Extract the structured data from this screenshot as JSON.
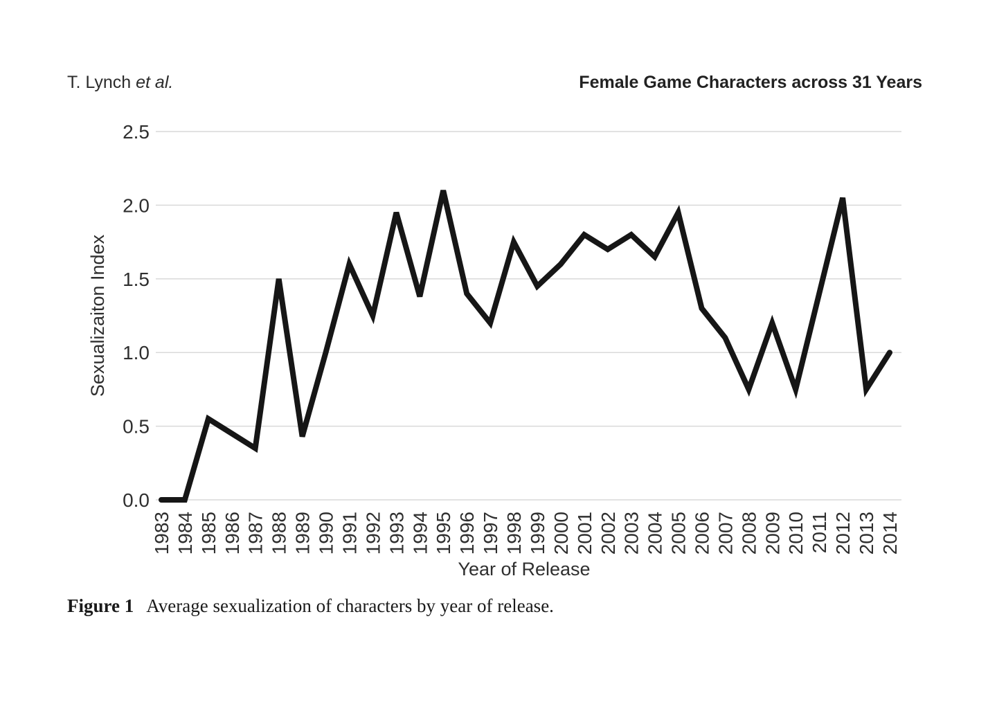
{
  "header": {
    "author_left": "T. Lynch",
    "author_etal": "et al.",
    "title_right": "Female Game Characters across 31 Years"
  },
  "caption": {
    "label": "Figure 1",
    "text": "Average sexualization of characters by year of release."
  },
  "chart_data": {
    "type": "line",
    "title": "",
    "xlabel": "Year of Release",
    "ylabel": "Sexualizaiton Index",
    "x": [
      1983,
      1984,
      1985,
      1986,
      1987,
      1988,
      1989,
      1990,
      1991,
      1992,
      1993,
      1994,
      1995,
      1996,
      1997,
      1998,
      1999,
      2000,
      2001,
      2002,
      2003,
      2004,
      2005,
      2006,
      2007,
      2008,
      2009,
      2010,
      2011,
      2012,
      2013,
      2014
    ],
    "values": [
      0.0,
      0.0,
      0.55,
      0.45,
      0.35,
      1.5,
      0.43,
      1.0,
      1.6,
      1.25,
      1.95,
      1.38,
      2.1,
      1.4,
      1.2,
      1.75,
      1.45,
      1.6,
      1.8,
      1.7,
      1.8,
      1.65,
      1.95,
      1.3,
      1.1,
      0.75,
      1.2,
      0.75,
      1.4,
      2.05,
      0.75,
      1.0
    ],
    "ylim": [
      0,
      2.5
    ],
    "yticks": [
      0.0,
      0.5,
      1.0,
      1.5,
      2.0,
      2.5
    ],
    "grid": true,
    "legend": "none",
    "line_color": "#161616",
    "grid_color": "#d9d9d9",
    "tick_text_color": "#2f2f2f"
  }
}
